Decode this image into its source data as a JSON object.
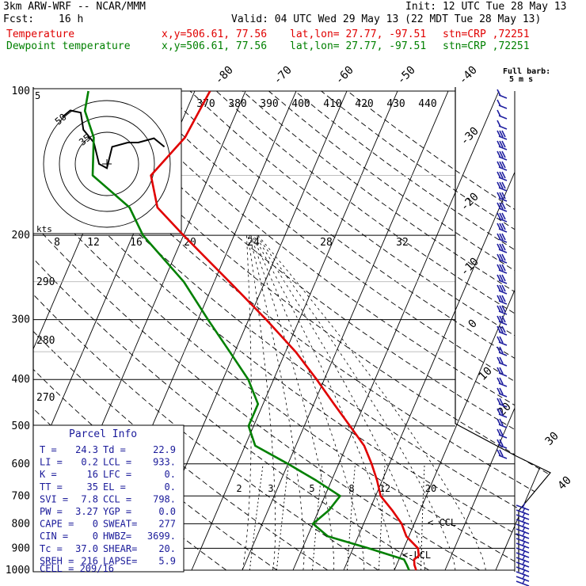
{
  "header": {
    "line1_left": "3km ARW-WRF -- NCAR/MMM",
    "line1_right": "Init: 12 UTC Tue 28 May 13",
    "fcst_label": "Fcst:",
    "fcst_value": "16 h",
    "valid": "Valid: 04 UTC Wed 29 May 13 (22 MDT Tue 28 May 13)",
    "temp_label": "Temperature",
    "dew_label": "Dewpoint temperature",
    "xy": "x,y=506.61, 77.56",
    "latlon": "lat,lon= 27.77, -97.51",
    "stn": "stn=CRP ,72251",
    "temp_color": "#e00000",
    "dew_color": "#008000"
  },
  "barb_legend": {
    "title": "Full barb:",
    "units": "5 m s"
  },
  "parcel_info": {
    "title": "Parcel Info",
    "rows": [
      [
        "T  =",
        "24.3",
        "Td =",
        "22.9"
      ],
      [
        "LI =",
        "0.2",
        "LCL =",
        "933."
      ],
      [
        "K  =",
        "16",
        "LFC =",
        "0."
      ],
      [
        "TT =",
        "35",
        "EL  =",
        "0."
      ],
      [
        "SVI =",
        "7.8",
        "CCL =",
        "798."
      ],
      [
        "PW =",
        "3.27",
        "YGP =",
        "0.0"
      ],
      [
        "CAPE =",
        "0",
        "SWEAT=",
        "277"
      ],
      [
        "CIN =",
        "0",
        "HWBZ=",
        "3699."
      ],
      [
        "Tc =",
        "37.0",
        "SHEAR=",
        "20."
      ],
      [
        "SREH =",
        "216",
        "LAPSE=",
        "5.9"
      ]
    ],
    "cell": "CELL = 209/16"
  },
  "markers": {
    "ccl": "< CCL",
    "lcl": "LCL"
  },
  "hodograph": {
    "units": "kts",
    "ring_labels": [
      "5",
      "50",
      "35"
    ]
  },
  "chart_data": {
    "type": "skew-t",
    "y_axis": {
      "scale": "log pressure",
      "ylim": [
        1000,
        100
      ],
      "tick_labels": [
        "100",
        "200",
        "300",
        "400",
        "500",
        "600",
        "700",
        "800",
        "900",
        "1000"
      ]
    },
    "isotherm_labels": [
      "-80",
      "-70",
      "-60",
      "-50",
      "-40",
      "-30",
      "-20",
      "-10",
      "0",
      "10",
      "20",
      "30",
      "40"
    ],
    "theta_labels": [
      "370",
      "380",
      "390",
      "400",
      "410",
      "420",
      "430",
      "440"
    ],
    "mixing_ratio_labels": [
      "2",
      "3",
      "5",
      "8",
      "12",
      "20"
    ],
    "lower_theta_labels": [
      "290",
      "280",
      "270"
    ],
    "upper_scale_labels": [
      "8",
      "12",
      "16",
      "20",
      "24",
      "28",
      "32"
    ],
    "series": [
      {
        "name": "Temperature",
        "color": "#e00000",
        "points": [
          [
            1000,
            24.3
          ],
          [
            975,
            23.5
          ],
          [
            950,
            23.0
          ],
          [
            933,
            23.6
          ],
          [
            900,
            22.8
          ],
          [
            850,
            19.5
          ],
          [
            800,
            17.5
          ],
          [
            750,
            14.5
          ],
          [
            700,
            11.0
          ],
          [
            650,
            9.0
          ],
          [
            600,
            6.5
          ],
          [
            550,
            3.5
          ],
          [
            500,
            -1.0
          ],
          [
            450,
            -6.0
          ],
          [
            400,
            -11.5
          ],
          [
            350,
            -18.0
          ],
          [
            300,
            -26.5
          ],
          [
            250,
            -37.0
          ],
          [
            200,
            -50.0
          ],
          [
            175,
            -57.5
          ],
          [
            150,
            -61.5
          ],
          [
            125,
            -58.0
          ],
          [
            100,
            -57.0
          ]
        ]
      },
      {
        "name": "Dewpoint temperature",
        "color": "#008000",
        "points": [
          [
            1000,
            22.9
          ],
          [
            975,
            22.0
          ],
          [
            950,
            21.0
          ],
          [
            900,
            13.0
          ],
          [
            850,
            4.0
          ],
          [
            800,
            0.0
          ],
          [
            750,
            2.0
          ],
          [
            700,
            3.0
          ],
          [
            650,
            -3.0
          ],
          [
            600,
            -10.0
          ],
          [
            550,
            -18.0
          ],
          [
            500,
            -21.0
          ],
          [
            450,
            -21.0
          ],
          [
            400,
            -25.0
          ],
          [
            350,
            -31.0
          ],
          [
            300,
            -38.0
          ],
          [
            250,
            -46.0
          ],
          [
            200,
            -58.0
          ],
          [
            175,
            -63.0
          ],
          [
            150,
            -73.0
          ],
          [
            125,
            -76.0
          ],
          [
            110,
            -80.0
          ],
          [
            100,
            -81.0
          ]
        ]
      }
    ],
    "hodograph_path_kts": [
      [
        -17,
        22
      ],
      [
        -14,
        25
      ],
      [
        -10,
        24
      ],
      [
        -9,
        16
      ],
      [
        -5,
        10
      ],
      [
        -3,
        0
      ],
      [
        0,
        -2
      ],
      [
        2,
        8
      ],
      [
        8,
        10
      ],
      [
        12,
        10
      ],
      [
        18,
        12
      ],
      [
        22,
        8
      ]
    ]
  }
}
